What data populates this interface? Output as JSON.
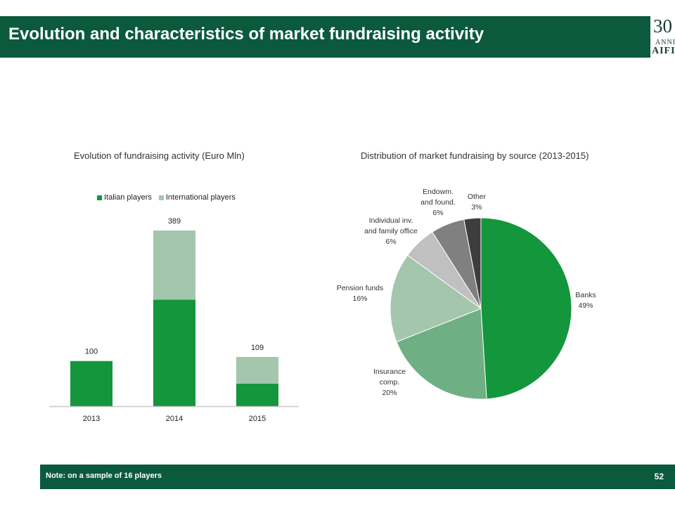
{
  "header": {
    "title": "Evolution and characteristics of market fundraising activity"
  },
  "logo": {
    "number": "30",
    "anni": "ANNI",
    "brand": "AIFI"
  },
  "colors": {
    "header_bg": "#0b5a3e",
    "italian": "#14963c",
    "international": "#a3c6ac",
    "banks": "#14963c",
    "insurance": "#6faf84",
    "pension": "#a3c6ac",
    "individual": "#c0c0c0",
    "endowments": "#808080",
    "other": "#3d3d3d"
  },
  "chart_data": [
    {
      "type": "bar",
      "stacked": true,
      "title": "Evolution of fundraising activity (Euro Mln)",
      "categories": [
        "2013",
        "2014",
        "2015"
      ],
      "series": [
        {
          "name": "Italian players",
          "values": [
            100,
            236,
            50
          ]
        },
        {
          "name": "International players",
          "values": [
            0,
            153,
            59
          ]
        }
      ],
      "totals": [
        100,
        389,
        109
      ],
      "total_labels": [
        "100",
        "389",
        "109"
      ],
      "ylim": [
        0,
        389
      ],
      "legend_position": "top",
      "grid": false
    },
    {
      "type": "pie",
      "title": "Distribution of market fundraising by source (2013-2015)",
      "slices": [
        {
          "label": [
            "Banks",
            "49%"
          ],
          "value": 49,
          "color_key": "banks"
        },
        {
          "label": [
            "Insurance",
            "comp.",
            "20%"
          ],
          "value": 20,
          "color_key": "insurance"
        },
        {
          "label": [
            "Pension funds",
            "16%"
          ],
          "value": 16,
          "color_key": "pension"
        },
        {
          "label": [
            "Individual inv.",
            "and family office",
            "6%"
          ],
          "value": 6,
          "color_key": "individual"
        },
        {
          "label": [
            "Endowm.",
            "and found.",
            "6%"
          ],
          "value": 6,
          "color_key": "endowments"
        },
        {
          "label": [
            "Other",
            "3%"
          ],
          "value": 3,
          "color_key": "other"
        }
      ]
    }
  ],
  "footer": {
    "note": "Note: on a sample of 16 players",
    "page": "52"
  }
}
